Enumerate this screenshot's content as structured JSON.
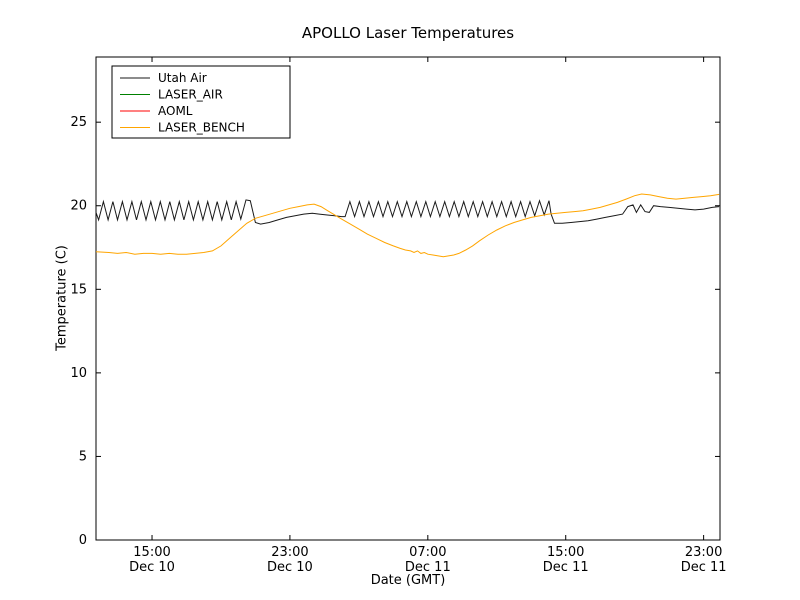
{
  "chart_data": {
    "type": "line",
    "title": "APOLLO Laser Temperatures",
    "xlabel": "Date (GMT)",
    "ylabel": "Temperature (C)",
    "x_unit": "hours since Dec 10 00:00 GMT",
    "xlim": [
      11.75,
      47.95
    ],
    "ylim": [
      0,
      28.9
    ],
    "grid": false,
    "legend_position": "upper left",
    "frame_color": "#000000",
    "y_ticks": [
      0,
      5,
      10,
      15,
      20,
      25
    ],
    "x_ticks": [
      {
        "t": 15,
        "line1": "15:00",
        "line2": "Dec 10"
      },
      {
        "t": 23,
        "line1": "23:00",
        "line2": "Dec 10"
      },
      {
        "t": 31,
        "line1": "07:00",
        "line2": "Dec 11"
      },
      {
        "t": 39,
        "line1": "15:00",
        "line2": "Dec 11"
      },
      {
        "t": 47,
        "line1": "23:00",
        "line2": "Dec 11"
      }
    ],
    "series": [
      {
        "name": "Utah Air",
        "color": "#1a1a1a",
        "points": [
          [
            11.75,
            19.6
          ],
          [
            11.9,
            19.15
          ],
          [
            12.18,
            20.25
          ],
          [
            12.45,
            19.15
          ],
          [
            12.73,
            20.25
          ],
          [
            13.0,
            19.15
          ],
          [
            13.28,
            20.25
          ],
          [
            13.55,
            19.15
          ],
          [
            13.83,
            20.25
          ],
          [
            14.1,
            19.15
          ],
          [
            14.38,
            20.25
          ],
          [
            14.65,
            19.15
          ],
          [
            14.93,
            20.25
          ],
          [
            15.2,
            19.15
          ],
          [
            15.48,
            20.25
          ],
          [
            15.75,
            19.15
          ],
          [
            16.03,
            20.25
          ],
          [
            16.3,
            19.15
          ],
          [
            16.58,
            20.25
          ],
          [
            16.85,
            19.15
          ],
          [
            17.13,
            20.25
          ],
          [
            17.4,
            19.15
          ],
          [
            17.68,
            20.25
          ],
          [
            17.95,
            19.15
          ],
          [
            18.23,
            20.25
          ],
          [
            18.5,
            19.15
          ],
          [
            18.78,
            20.25
          ],
          [
            19.05,
            19.15
          ],
          [
            19.33,
            20.25
          ],
          [
            19.6,
            19.15
          ],
          [
            19.88,
            20.25
          ],
          [
            20.15,
            19.2
          ],
          [
            20.45,
            20.35
          ],
          [
            20.7,
            20.3
          ],
          [
            21.0,
            19.0
          ],
          [
            21.3,
            18.9
          ],
          [
            21.8,
            19.0
          ],
          [
            22.3,
            19.15
          ],
          [
            22.8,
            19.3
          ],
          [
            23.3,
            19.4
          ],
          [
            23.8,
            19.5
          ],
          [
            24.3,
            19.55
          ],
          [
            24.7,
            19.5
          ],
          [
            25.1,
            19.45
          ],
          [
            25.6,
            19.4
          ],
          [
            26.0,
            19.35
          ],
          [
            26.2,
            19.35
          ],
          [
            26.48,
            20.25
          ],
          [
            26.75,
            19.35
          ],
          [
            27.03,
            20.25
          ],
          [
            27.3,
            19.35
          ],
          [
            27.58,
            20.25
          ],
          [
            27.85,
            19.35
          ],
          [
            28.13,
            20.25
          ],
          [
            28.4,
            19.35
          ],
          [
            28.68,
            20.25
          ],
          [
            28.95,
            19.35
          ],
          [
            29.23,
            20.25
          ],
          [
            29.5,
            19.35
          ],
          [
            29.78,
            20.25
          ],
          [
            30.05,
            19.35
          ],
          [
            30.33,
            20.25
          ],
          [
            30.6,
            19.35
          ],
          [
            30.88,
            20.25
          ],
          [
            31.15,
            19.35
          ],
          [
            31.43,
            20.25
          ],
          [
            31.7,
            19.35
          ],
          [
            31.98,
            20.25
          ],
          [
            32.25,
            19.35
          ],
          [
            32.53,
            20.25
          ],
          [
            32.8,
            19.35
          ],
          [
            33.08,
            20.25
          ],
          [
            33.35,
            19.35
          ],
          [
            33.63,
            20.25
          ],
          [
            33.9,
            19.35
          ],
          [
            34.18,
            20.25
          ],
          [
            34.45,
            19.35
          ],
          [
            34.73,
            20.25
          ],
          [
            35.0,
            19.35
          ],
          [
            35.28,
            20.25
          ],
          [
            35.55,
            19.35
          ],
          [
            35.83,
            20.25
          ],
          [
            36.1,
            19.35
          ],
          [
            36.38,
            20.25
          ],
          [
            36.65,
            19.35
          ],
          [
            36.93,
            20.25
          ],
          [
            37.2,
            19.4
          ],
          [
            37.48,
            20.3
          ],
          [
            37.75,
            19.45
          ],
          [
            38.03,
            20.3
          ],
          [
            38.15,
            19.5
          ],
          [
            38.35,
            18.95
          ],
          [
            38.8,
            18.95
          ],
          [
            39.3,
            19.0
          ],
          [
            39.8,
            19.05
          ],
          [
            40.3,
            19.1
          ],
          [
            40.8,
            19.2
          ],
          [
            41.3,
            19.3
          ],
          [
            41.8,
            19.4
          ],
          [
            42.3,
            19.5
          ],
          [
            42.6,
            19.95
          ],
          [
            42.9,
            20.05
          ],
          [
            43.1,
            19.6
          ],
          [
            43.35,
            20.05
          ],
          [
            43.6,
            19.65
          ],
          [
            43.85,
            19.6
          ],
          [
            44.1,
            20.0
          ],
          [
            44.5,
            19.95
          ],
          [
            45.0,
            19.9
          ],
          [
            45.5,
            19.85
          ],
          [
            46.0,
            19.8
          ],
          [
            46.5,
            19.75
          ],
          [
            47.0,
            19.8
          ],
          [
            47.5,
            19.9
          ],
          [
            47.9,
            19.95
          ]
        ]
      },
      {
        "name": "LASER_AIR",
        "color": "#008000",
        "points": []
      },
      {
        "name": "AOML",
        "color": "#ff0000",
        "points": []
      },
      {
        "name": "LASER_BENCH",
        "color": "#ffa500",
        "points": [
          [
            11.75,
            17.25
          ],
          [
            12.5,
            17.2
          ],
          [
            13.0,
            17.15
          ],
          [
            13.5,
            17.2
          ],
          [
            14.0,
            17.1
          ],
          [
            14.5,
            17.15
          ],
          [
            15.0,
            17.15
          ],
          [
            15.5,
            17.1
          ],
          [
            16.0,
            17.15
          ],
          [
            16.5,
            17.1
          ],
          [
            17.0,
            17.1
          ],
          [
            17.5,
            17.15
          ],
          [
            18.0,
            17.2
          ],
          [
            18.5,
            17.3
          ],
          [
            19.0,
            17.6
          ],
          [
            19.5,
            18.05
          ],
          [
            20.0,
            18.5
          ],
          [
            20.5,
            18.95
          ],
          [
            21.0,
            19.25
          ],
          [
            21.5,
            19.4
          ],
          [
            22.0,
            19.55
          ],
          [
            22.5,
            19.7
          ],
          [
            23.0,
            19.85
          ],
          [
            23.5,
            19.95
          ],
          [
            24.0,
            20.05
          ],
          [
            24.4,
            20.1
          ],
          [
            24.8,
            19.95
          ],
          [
            25.2,
            19.7
          ],
          [
            25.6,
            19.45
          ],
          [
            26.0,
            19.2
          ],
          [
            26.5,
            18.9
          ],
          [
            27.0,
            18.6
          ],
          [
            27.5,
            18.3
          ],
          [
            28.0,
            18.05
          ],
          [
            28.5,
            17.8
          ],
          [
            29.0,
            17.6
          ],
          [
            29.4,
            17.45
          ],
          [
            29.7,
            17.35
          ],
          [
            30.0,
            17.3
          ],
          [
            30.2,
            17.2
          ],
          [
            30.4,
            17.3
          ],
          [
            30.6,
            17.15
          ],
          [
            30.8,
            17.2
          ],
          [
            31.0,
            17.1
          ],
          [
            31.3,
            17.05
          ],
          [
            31.6,
            17.0
          ],
          [
            31.9,
            16.95
          ],
          [
            32.2,
            17.0
          ],
          [
            32.5,
            17.05
          ],
          [
            32.8,
            17.15
          ],
          [
            33.2,
            17.35
          ],
          [
            33.6,
            17.6
          ],
          [
            34.0,
            17.9
          ],
          [
            34.5,
            18.25
          ],
          [
            35.0,
            18.55
          ],
          [
            35.5,
            18.8
          ],
          [
            36.0,
            19.0
          ],
          [
            36.5,
            19.15
          ],
          [
            37.0,
            19.3
          ],
          [
            37.5,
            19.4
          ],
          [
            38.0,
            19.5
          ],
          [
            38.5,
            19.55
          ],
          [
            39.0,
            19.6
          ],
          [
            39.5,
            19.65
          ],
          [
            40.0,
            19.7
          ],
          [
            40.5,
            19.8
          ],
          [
            41.0,
            19.9
          ],
          [
            41.5,
            20.05
          ],
          [
            42.0,
            20.2
          ],
          [
            42.5,
            20.4
          ],
          [
            43.0,
            20.6
          ],
          [
            43.4,
            20.7
          ],
          [
            43.9,
            20.65
          ],
          [
            44.4,
            20.55
          ],
          [
            44.9,
            20.45
          ],
          [
            45.4,
            20.4
          ],
          [
            45.9,
            20.45
          ],
          [
            46.4,
            20.5
          ],
          [
            46.9,
            20.55
          ],
          [
            47.4,
            20.6
          ],
          [
            47.9,
            20.68
          ]
        ]
      }
    ]
  }
}
